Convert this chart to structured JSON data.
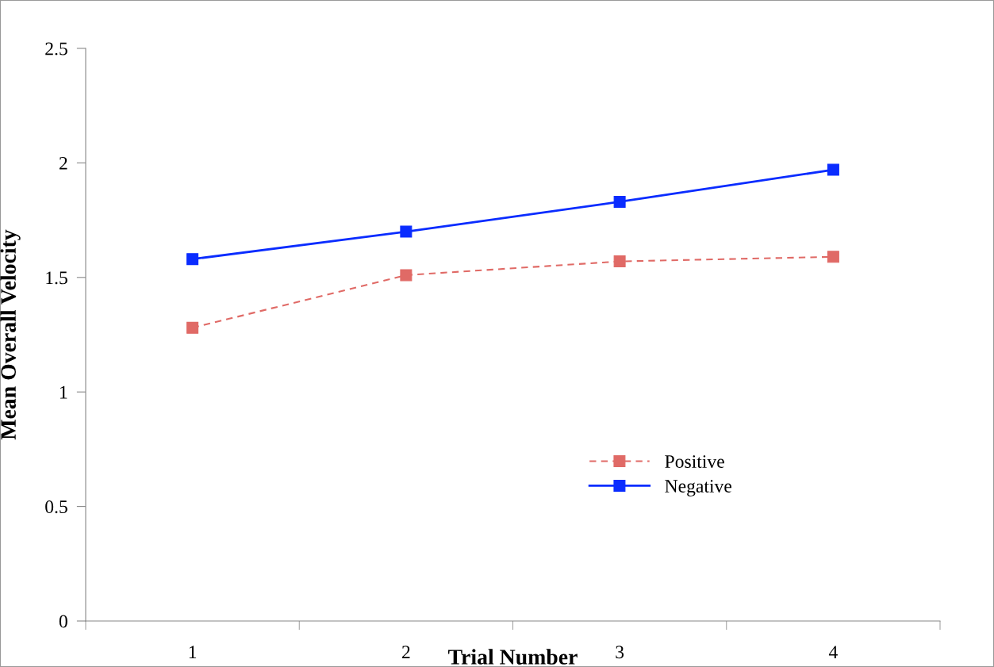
{
  "chart_data": {
    "type": "line",
    "xlabel": "Trial Number",
    "ylabel": "Mean Overall Velocity",
    "categories": [
      "1",
      "2",
      "3",
      "4"
    ],
    "series": [
      {
        "name": "Positive",
        "color": "#e06a66",
        "line_style": "dashed",
        "values": [
          1.28,
          1.51,
          1.57,
          1.59
        ]
      },
      {
        "name": "Negative",
        "color": "#0a2cff",
        "line_style": "solid",
        "values": [
          1.58,
          1.7,
          1.83,
          1.97
        ]
      }
    ],
    "ylim": [
      0,
      2.5
    ],
    "yticks": [
      0,
      0.5,
      1,
      1.5,
      2,
      2.5
    ],
    "marker": "square",
    "grid": false,
    "legend": "center right"
  }
}
